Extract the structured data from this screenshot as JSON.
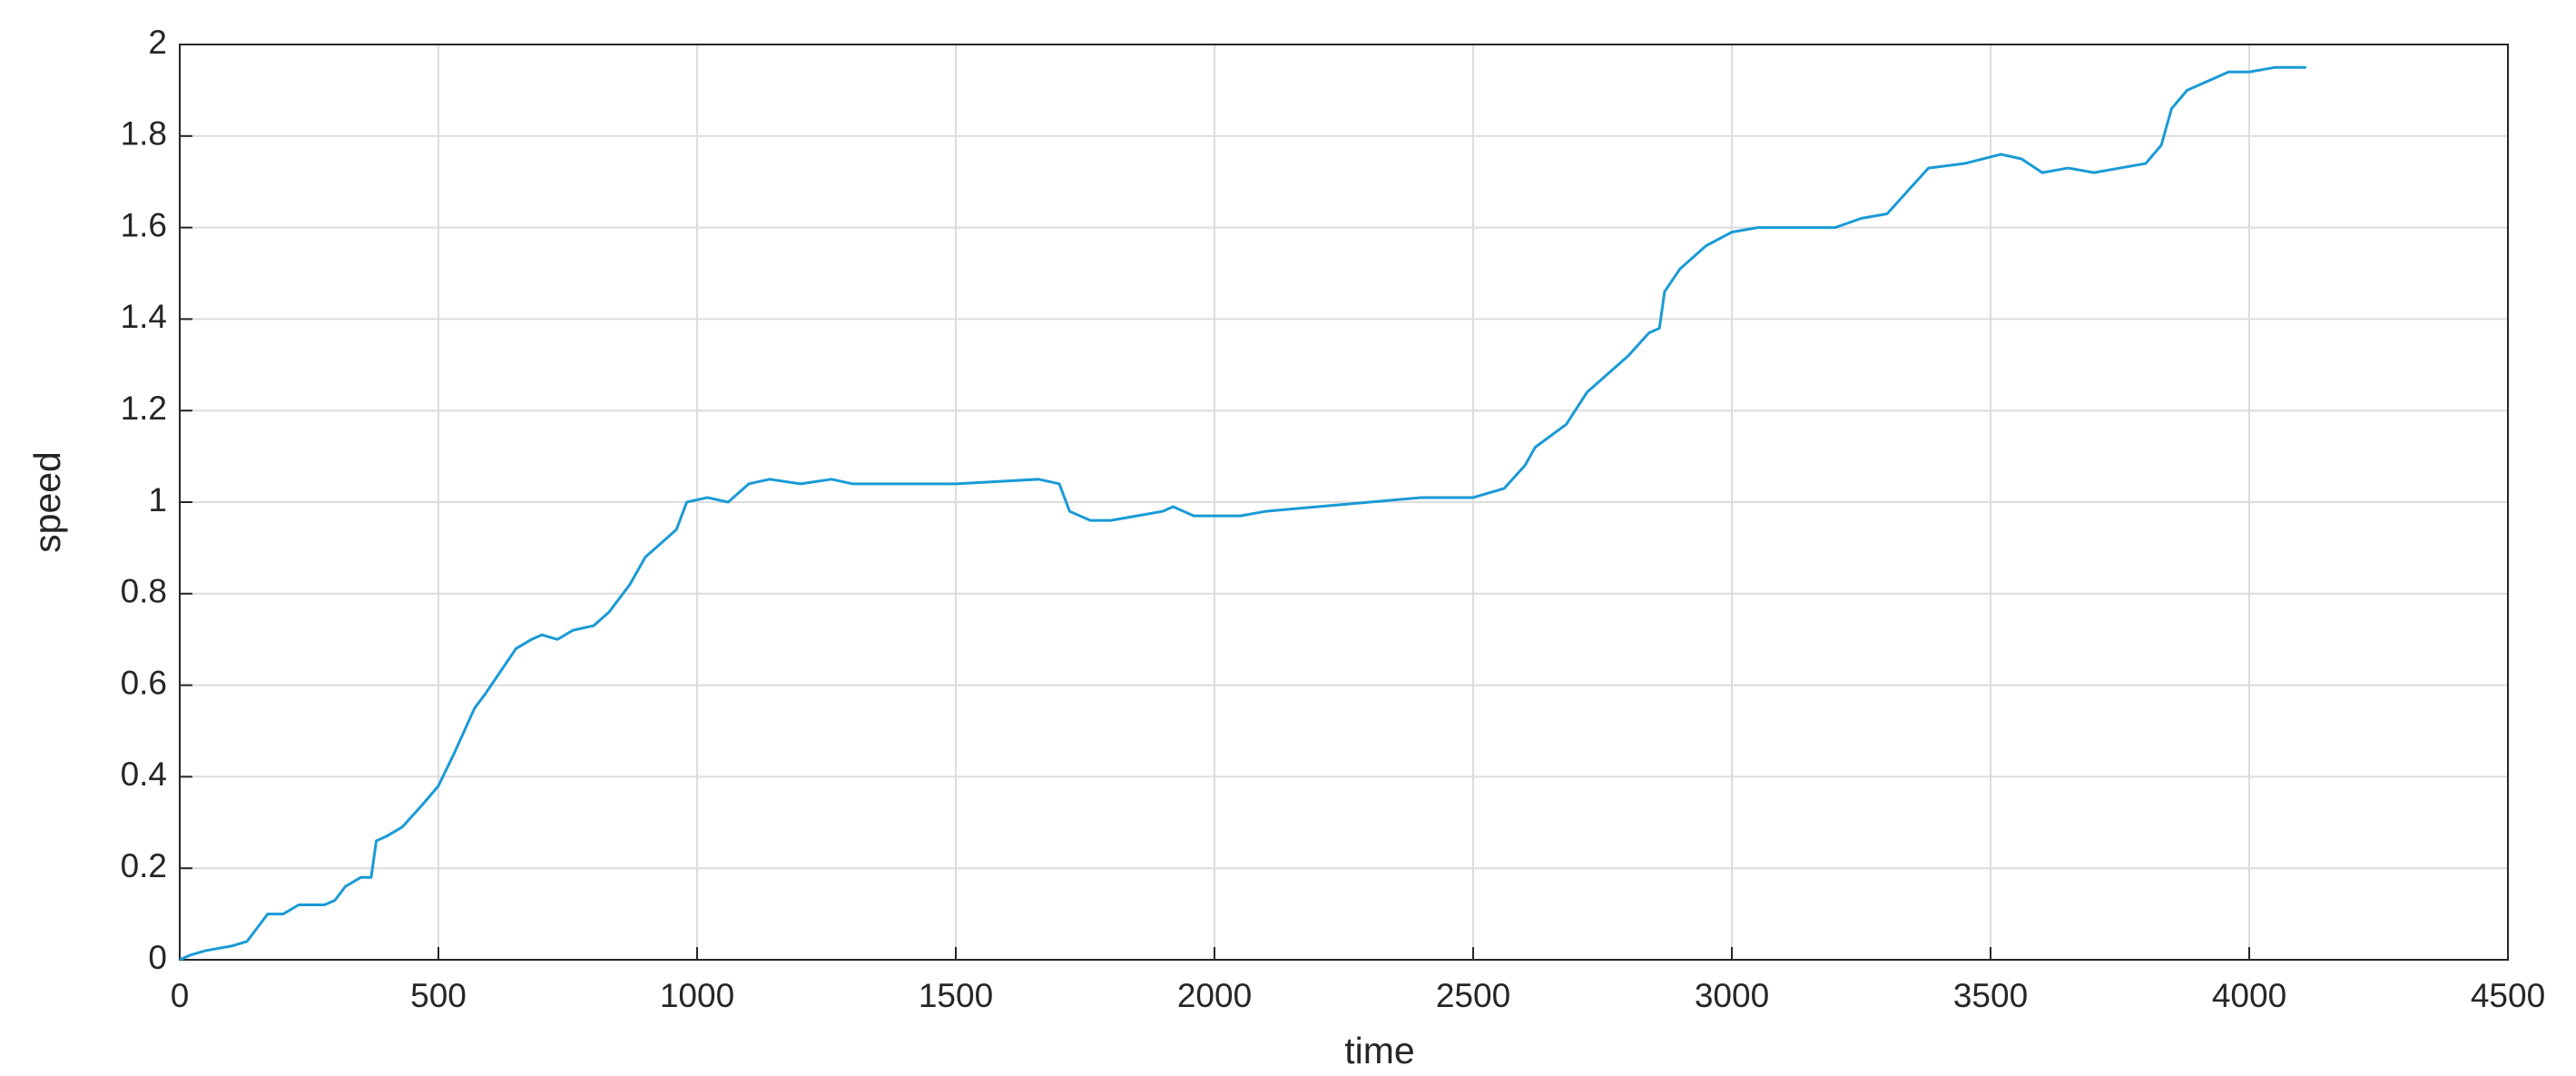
{
  "chart_data": {
    "type": "line",
    "xlabel": "time",
    "ylabel": "speed",
    "x": [
      0,
      20,
      50,
      100,
      130,
      150,
      170,
      200,
      230,
      280,
      300,
      320,
      350,
      370,
      380,
      400,
      430,
      470,
      500,
      530,
      570,
      590,
      620,
      650,
      680,
      700,
      730,
      760,
      800,
      830,
      870,
      900,
      940,
      960,
      980,
      1020,
      1060,
      1100,
      1140,
      1200,
      1260,
      1300,
      1500,
      1660,
      1700,
      1720,
      1760,
      1800,
      1850,
      1900,
      1920,
      1960,
      2000,
      2050,
      2100,
      2200,
      2300,
      2400,
      2500,
      2560,
      2600,
      2620,
      2680,
      2720,
      2760,
      2800,
      2840,
      2860,
      2870,
      2900,
      2950,
      3000,
      3050,
      3100,
      3200,
      3250,
      3300,
      3340,
      3380,
      3450,
      3520,
      3560,
      3600,
      3650,
      3700,
      3750,
      3800,
      3830,
      3850,
      3880,
      3920,
      3960,
      4000,
      4050,
      4100,
      4110
    ],
    "values": [
      0,
      0.01,
      0.02,
      0.03,
      0.04,
      0.07,
      0.1,
      0.1,
      0.12,
      0.12,
      0.13,
      0.16,
      0.18,
      0.18,
      0.26,
      0.27,
      0.29,
      0.34,
      0.38,
      0.45,
      0.55,
      0.58,
      0.63,
      0.68,
      0.7,
      0.71,
      0.7,
      0.72,
      0.73,
      0.76,
      0.82,
      0.88,
      0.92,
      0.94,
      1.0,
      1.01,
      1.0,
      1.04,
      1.05,
      1.04,
      1.05,
      1.04,
      1.04,
      1.05,
      1.04,
      0.98,
      0.96,
      0.96,
      0.97,
      0.98,
      0.99,
      0.97,
      0.97,
      0.97,
      0.98,
      0.99,
      1.0,
      1.01,
      1.01,
      1.03,
      1.08,
      1.12,
      1.17,
      1.24,
      1.28,
      1.32,
      1.37,
      1.38,
      1.46,
      1.51,
      1.56,
      1.59,
      1.6,
      1.6,
      1.6,
      1.62,
      1.63,
      1.68,
      1.73,
      1.74,
      1.76,
      1.75,
      1.72,
      1.73,
      1.72,
      1.73,
      1.74,
      1.78,
      1.86,
      1.9,
      1.92,
      1.94,
      1.94,
      1.95,
      1.95,
      1.95
    ],
    "color": "#1a9ad6",
    "xlim": [
      0,
      4500
    ],
    "xticks": [
      0,
      500,
      1000,
      1500,
      2000,
      2500,
      3000,
      3500,
      4000,
      4500
    ],
    "ylim": [
      0,
      2
    ],
    "yticks": [
      0,
      0.2,
      0.4,
      0.6,
      0.8,
      1,
      1.2,
      1.4,
      1.6,
      1.8,
      2
    ],
    "grid": true
  }
}
